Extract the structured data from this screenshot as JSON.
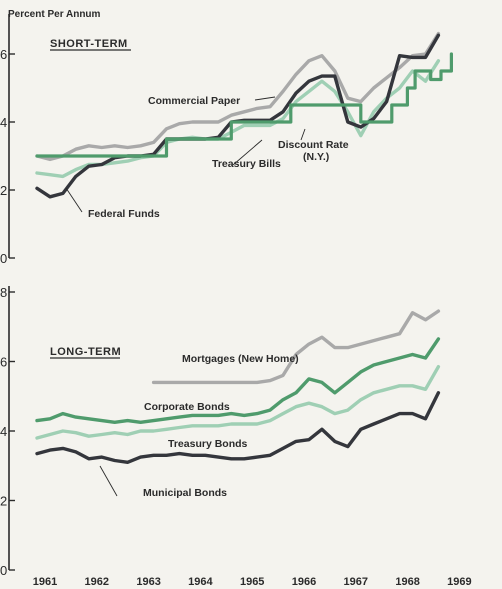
{
  "chart_data": [
    {
      "type": "line",
      "panel_title": "SHORT-TERM",
      "ylabel": "Percent Per Annum",
      "ylim": [
        0,
        7
      ],
      "yticks": [
        0,
        2,
        4,
        6
      ],
      "xlim": [
        1961,
        1969
      ],
      "series": [
        {
          "name": "Commercial Paper",
          "color": "#a9a9a9",
          "x": [
            1961,
            1961.25,
            1961.5,
            1961.75,
            1962,
            1962.25,
            1962.5,
            1962.75,
            1963,
            1963.25,
            1963.5,
            1963.75,
            1964,
            1964.25,
            1964.5,
            1964.75,
            1965,
            1965.25,
            1965.5,
            1965.75,
            1966,
            1966.25,
            1966.5,
            1966.75,
            1967,
            1967.25,
            1967.5,
            1967.75,
            1968,
            1968.25,
            1968.5,
            1968.75
          ],
          "y": [
            3.0,
            2.9,
            3.0,
            3.2,
            3.3,
            3.25,
            3.3,
            3.25,
            3.3,
            3.4,
            3.8,
            3.95,
            4.0,
            4.0,
            4.0,
            4.2,
            4.3,
            4.4,
            4.45,
            4.9,
            5.4,
            5.8,
            5.95,
            5.5,
            4.7,
            4.6,
            5.0,
            5.3,
            5.6,
            5.95,
            6.0,
            6.6
          ]
        },
        {
          "name": "Treasury Bills",
          "color": "#9fcfb4",
          "x": [
            1961,
            1961.25,
            1961.5,
            1961.75,
            1962,
            1962.25,
            1962.5,
            1962.75,
            1963,
            1963.25,
            1963.5,
            1963.75,
            1964,
            1964.25,
            1964.5,
            1964.75,
            1965,
            1965.25,
            1965.5,
            1965.75,
            1966,
            1966.25,
            1966.5,
            1966.75,
            1967,
            1967.25,
            1967.5,
            1967.75,
            1968,
            1968.25,
            1968.5,
            1968.75
          ],
          "y": [
            2.5,
            2.45,
            2.4,
            2.6,
            2.75,
            2.75,
            2.8,
            2.85,
            2.95,
            3.0,
            3.4,
            3.5,
            3.55,
            3.5,
            3.5,
            3.7,
            3.9,
            3.9,
            3.9,
            4.1,
            4.6,
            4.9,
            5.2,
            4.9,
            4.3,
            3.6,
            4.3,
            4.7,
            5.0,
            5.5,
            5.2,
            5.8
          ]
        },
        {
          "name": "Federal Funds",
          "color": "#34363c",
          "x": [
            1961,
            1961.25,
            1961.5,
            1961.75,
            1962,
            1962.25,
            1962.5,
            1962.75,
            1963,
            1963.25,
            1963.5,
            1963.75,
            1964,
            1964.25,
            1964.5,
            1964.75,
            1965,
            1965.25,
            1965.5,
            1965.75,
            1966,
            1966.25,
            1966.5,
            1966.75,
            1967,
            1967.25,
            1967.5,
            1967.75,
            1968,
            1968.25,
            1968.5,
            1968.75
          ],
          "y": [
            2.05,
            1.8,
            1.9,
            2.4,
            2.7,
            2.75,
            2.95,
            3.0,
            3.0,
            3.05,
            3.5,
            3.5,
            3.5,
            3.5,
            3.55,
            4.0,
            4.05,
            4.05,
            4.05,
            4.3,
            4.85,
            5.2,
            5.35,
            5.35,
            4.0,
            3.85,
            4.1,
            4.6,
            5.95,
            5.9,
            5.9,
            6.55
          ]
        },
        {
          "name": "Discount Rate\n(N.Y.)",
          "color": "#4f9b6c",
          "step": true,
          "x": [
            1961,
            1963.5,
            1964.75,
            1965.9,
            1966.9,
            1967.25,
            1967.85,
            1968.15,
            1968.3,
            1968.6,
            1968.8,
            1969
          ],
          "y": [
            3.0,
            3.5,
            4.0,
            4.5,
            4.5,
            4.0,
            4.5,
            5.0,
            5.5,
            5.25,
            5.5,
            6.0
          ]
        }
      ]
    },
    {
      "type": "line",
      "panel_title": "LONG-TERM",
      "ylim": [
        0,
        8
      ],
      "yticks": [
        0,
        2,
        4,
        6,
        8
      ],
      "xlim": [
        1961,
        1969
      ],
      "xticks": [
        "1961",
        "1962",
        "1963",
        "1964",
        "1965",
        "1966",
        "1967",
        "1968",
        "1969"
      ],
      "series": [
        {
          "name": "Mortgages (New Home)",
          "color": "#a9a9a9",
          "x": [
            1963.25,
            1963.5,
            1963.75,
            1964,
            1964.25,
            1964.5,
            1964.75,
            1965,
            1965.25,
            1965.5,
            1965.75,
            1966,
            1966.25,
            1966.5,
            1966.75,
            1967,
            1967.25,
            1967.5,
            1967.75,
            1968,
            1968.25,
            1968.5,
            1968.75
          ],
          "y": [
            5.4,
            5.4,
            5.4,
            5.4,
            5.4,
            5.4,
            5.4,
            5.4,
            5.4,
            5.45,
            5.6,
            6.2,
            6.5,
            6.7,
            6.4,
            6.4,
            6.5,
            6.6,
            6.7,
            6.8,
            7.4,
            7.2,
            7.45
          ]
        },
        {
          "name": "Corporate Bonds",
          "color": "#4f9b6c",
          "x": [
            1961,
            1961.25,
            1961.5,
            1961.75,
            1962,
            1962.25,
            1962.5,
            1962.75,
            1963,
            1963.25,
            1963.5,
            1963.75,
            1964,
            1964.25,
            1964.5,
            1964.75,
            1965,
            1965.25,
            1965.5,
            1965.75,
            1966,
            1966.25,
            1966.5,
            1966.75,
            1967,
            1967.25,
            1967.5,
            1967.75,
            1968,
            1968.25,
            1968.5,
            1968.75
          ],
          "y": [
            4.3,
            4.35,
            4.5,
            4.4,
            4.35,
            4.3,
            4.25,
            4.3,
            4.25,
            4.3,
            4.35,
            4.4,
            4.45,
            4.45,
            4.45,
            4.5,
            4.45,
            4.5,
            4.6,
            4.9,
            5.1,
            5.5,
            5.4,
            5.1,
            5.4,
            5.7,
            5.9,
            6.0,
            6.1,
            6.2,
            6.1,
            6.65
          ]
        },
        {
          "name": "Treasury Bonds",
          "color": "#9fcfb4",
          "x": [
            1961,
            1961.25,
            1961.5,
            1961.75,
            1962,
            1962.25,
            1962.5,
            1962.75,
            1963,
            1963.25,
            1963.5,
            1963.75,
            1964,
            1964.25,
            1964.5,
            1964.75,
            1965,
            1965.25,
            1965.5,
            1965.75,
            1966,
            1966.25,
            1966.5,
            1966.75,
            1967,
            1967.25,
            1967.5,
            1967.75,
            1968,
            1968.25,
            1968.5,
            1968.75
          ],
          "y": [
            3.8,
            3.9,
            4.0,
            3.95,
            3.85,
            3.9,
            3.95,
            3.9,
            4.0,
            4.0,
            4.05,
            4.1,
            4.15,
            4.15,
            4.15,
            4.2,
            4.2,
            4.2,
            4.3,
            4.5,
            4.7,
            4.8,
            4.7,
            4.5,
            4.6,
            4.9,
            5.1,
            5.2,
            5.3,
            5.3,
            5.2,
            5.85
          ]
        },
        {
          "name": "Municipal Bonds",
          "color": "#34363c",
          "x": [
            1961,
            1961.25,
            1961.5,
            1961.75,
            1962,
            1962.25,
            1962.5,
            1962.75,
            1963,
            1963.25,
            1963.5,
            1963.75,
            1964,
            1964.25,
            1964.5,
            1964.75,
            1965,
            1965.25,
            1965.5,
            1965.75,
            1966,
            1966.25,
            1966.5,
            1966.75,
            1967,
            1967.25,
            1967.5,
            1967.75,
            1968,
            1968.25,
            1968.5,
            1968.75
          ],
          "y": [
            3.35,
            3.45,
            3.5,
            3.4,
            3.2,
            3.25,
            3.15,
            3.1,
            3.25,
            3.3,
            3.3,
            3.35,
            3.3,
            3.3,
            3.25,
            3.2,
            3.2,
            3.25,
            3.3,
            3.5,
            3.7,
            3.75,
            4.05,
            3.7,
            3.55,
            4.05,
            4.2,
            4.35,
            4.5,
            4.5,
            4.35,
            5.1
          ]
        }
      ]
    }
  ]
}
